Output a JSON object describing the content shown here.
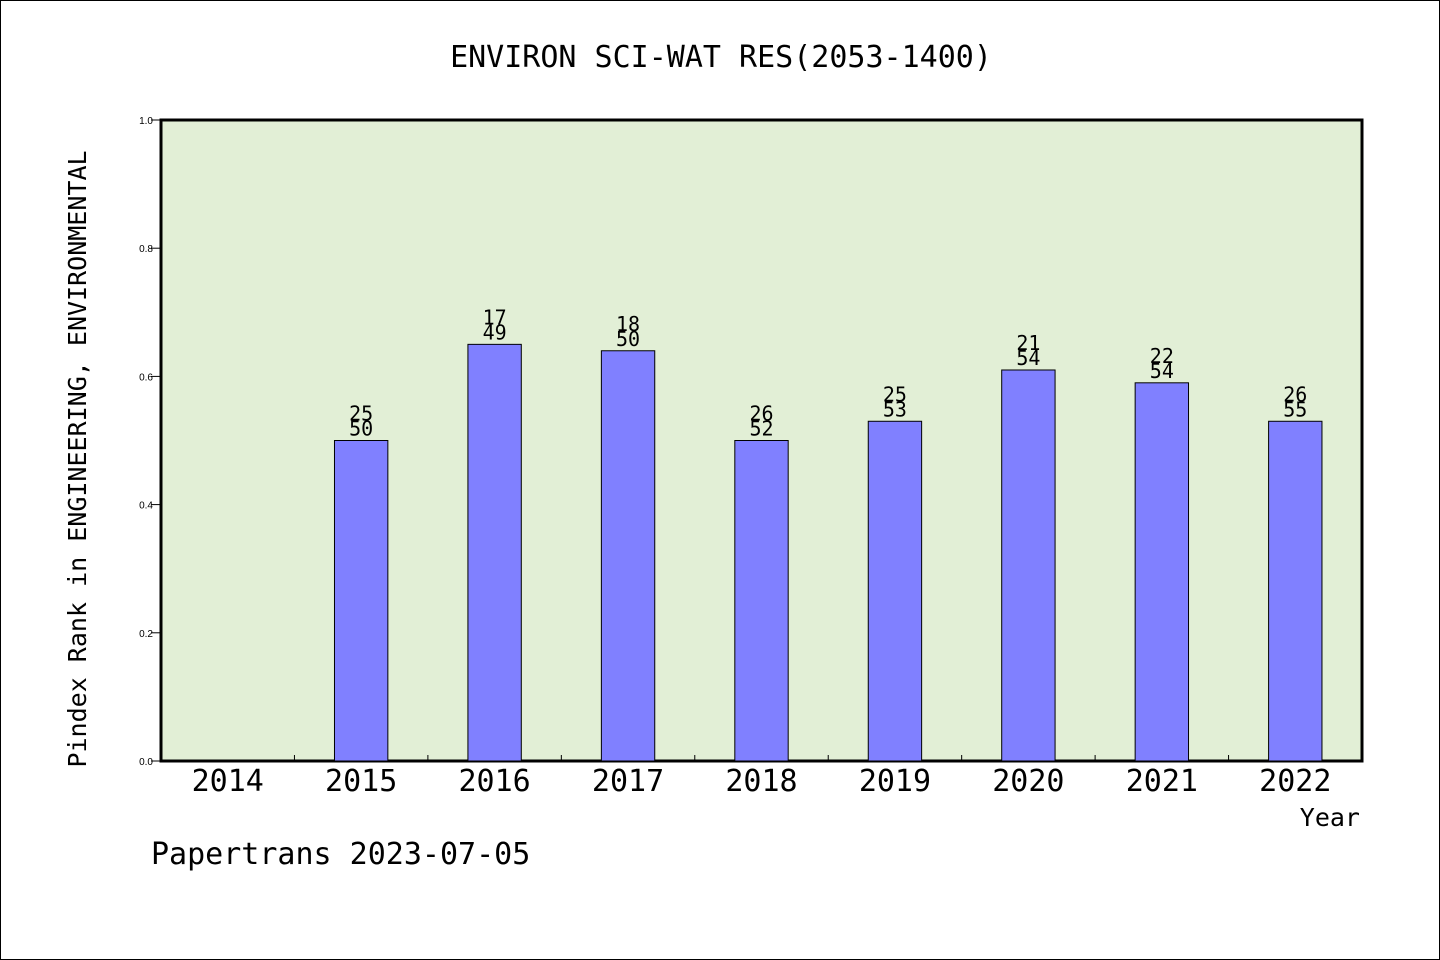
{
  "chart_data": {
    "type": "bar",
    "title": "ENVIRON SCI-WAT RES(2053-1400)",
    "xlabel": "Year",
    "ylabel": "Pindex Rank in ENGINEERING, ENVIRONMENTAL",
    "ylim": [
      0.0,
      1.0
    ],
    "yticks": [
      "0.0",
      "0.2",
      "0.4",
      "0.6",
      "0.8",
      "1.0"
    ],
    "categories": [
      "2014",
      "2015",
      "2016",
      "2017",
      "2018",
      "2019",
      "2020",
      "2021",
      "2022"
    ],
    "values": [
      null,
      0.5,
      0.65,
      0.64,
      0.5,
      0.53,
      0.61,
      0.59,
      0.53
    ],
    "rank": [
      null,
      25,
      17,
      18,
      26,
      25,
      21,
      22,
      26
    ],
    "total": [
      null,
      50,
      49,
      50,
      52,
      53,
      54,
      54,
      55
    ],
    "grid": false,
    "legend": "none"
  },
  "footer": "Papertrans 2023-07-05",
  "colors": {
    "plot_background": "#e2efd6",
    "bar_fill": "#8080ff",
    "axis": "#000000",
    "page_background": "#ffffff"
  }
}
